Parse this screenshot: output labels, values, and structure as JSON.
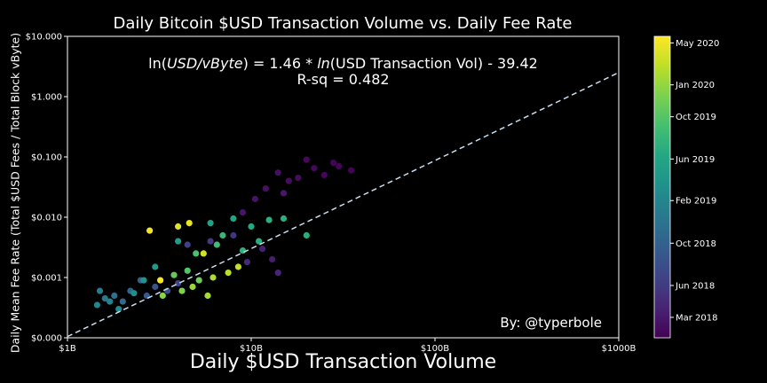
{
  "chart_data": {
    "type": "scatter",
    "title": "Daily Bitcoin $USD Transaction Volume vs. Daily Fee Rate",
    "xlabel": "Daily $USD Transaction Volume",
    "ylabel": "Daily Mean Fee Rate (Total $USD Fees / Total Block vByte)",
    "x_scale": "log",
    "y_scale": "log",
    "xlim": [
      1000000000,
      1000000000000
    ],
    "ylim": [
      0.0001,
      10
    ],
    "x_ticks": [
      {
        "value": 1000000000,
        "label": "$1B"
      },
      {
        "value": 10000000000,
        "label": "$10B"
      },
      {
        "value": 100000000000,
        "label": "$100B"
      },
      {
        "value": 1000000000000,
        "label": "$1000B"
      }
    ],
    "y_ticks": [
      {
        "value": 0.0001,
        "label": "$0.000"
      },
      {
        "value": 0.001,
        "label": "$0.001"
      },
      {
        "value": 0.01,
        "label": "$0.010"
      },
      {
        "value": 0.1,
        "label": "$0.100"
      },
      {
        "value": 1,
        "label": "$1.000"
      },
      {
        "value": 10,
        "label": "$10.000"
      }
    ],
    "annotation": {
      "equation_prefix": "ln(",
      "equation_italic": "USD/vByte",
      "equation_middle": ") = 1.46 * ",
      "equation_italic2": "ln",
      "equation_suffix": "(USD Transaction Vol) - 39.42",
      "rsq": "R-sq = 0.482",
      "credit": "By: @typerbole"
    },
    "fit_line": {
      "slope": 1.46,
      "intercept": -39.42,
      "style": "dashed",
      "color": "#c8dff0"
    },
    "colorbar": {
      "colormap": "viridis",
      "range": [
        "2018-01-01",
        "2020-05-20"
      ],
      "ticks": [
        {
          "date": "2018-03-01",
          "label": "Mar 2018"
        },
        {
          "date": "2018-06-01",
          "label": "Jun 2018"
        },
        {
          "date": "2018-10-01",
          "label": "Oct 2018"
        },
        {
          "date": "2019-02-01",
          "label": "Feb 2019"
        },
        {
          "date": "2019-06-01",
          "label": "Jun 2019"
        },
        {
          "date": "2019-10-01",
          "label": "Oct 2019"
        },
        {
          "date": "2020-01-01",
          "label": "Jan 2020"
        },
        {
          "date": "2020-05-01",
          "label": "May 2020"
        }
      ]
    },
    "series": [
      {
        "date_range": [
          "2018-01-01",
          "2020-05-20"
        ],
        "points": [
          {
            "x": 35000000000,
            "y": 0.06,
            "date": "2018-01-05"
          },
          {
            "x": 30000000000,
            "y": 0.07,
            "date": "2018-01-08"
          },
          {
            "x": 28000000000,
            "y": 0.08,
            "date": "2018-01-10"
          },
          {
            "x": 25000000000,
            "y": 0.05,
            "date": "2018-01-15"
          },
          {
            "x": 20000000000,
            "y": 0.09,
            "date": "2018-01-18"
          },
          {
            "x": 22000000000,
            "y": 0.065,
            "date": "2018-01-20"
          },
          {
            "x": 18000000000,
            "y": 0.045,
            "date": "2018-01-25"
          },
          {
            "x": 16000000000,
            "y": 0.04,
            "date": "2018-02-01"
          },
          {
            "x": 14000000000,
            "y": 0.055,
            "date": "2018-02-05"
          },
          {
            "x": 12000000000,
            "y": 0.03,
            "date": "2018-02-10"
          },
          {
            "x": 10500000000,
            "y": 0.02,
            "date": "2018-02-15"
          },
          {
            "x": 9000000000,
            "y": 0.012,
            "date": "2018-02-20"
          },
          {
            "x": 15000000000,
            "y": 0.025,
            "date": "2018-02-25"
          },
          {
            "x": 13000000000,
            "y": 0.002,
            "date": "2018-03-10"
          },
          {
            "x": 11500000000,
            "y": 0.003,
            "date": "2018-03-20"
          },
          {
            "x": 14000000000,
            "y": 0.0012,
            "date": "2018-04-01"
          },
          {
            "x": 9500000000,
            "y": 0.0018,
            "date": "2018-04-15"
          },
          {
            "x": 8000000000,
            "y": 0.005,
            "date": "2018-05-10"
          },
          {
            "x": 6000000000,
            "y": 0.004,
            "date": "2018-05-25"
          },
          {
            "x": 4500000000,
            "y": 0.0035,
            "date": "2018-06-15"
          },
          {
            "x": 4000000000,
            "y": 0.0008,
            "date": "2018-07-01"
          },
          {
            "x": 3500000000,
            "y": 0.0006,
            "date": "2018-07-20"
          },
          {
            "x": 3000000000,
            "y": 0.0007,
            "date": "2018-08-10"
          },
          {
            "x": 2700000000,
            "y": 0.0005,
            "date": "2018-09-01"
          },
          {
            "x": 2500000000,
            "y": 0.0009,
            "date": "2018-09-20"
          },
          {
            "x": 2200000000,
            "y": 0.0006,
            "date": "2018-10-10"
          },
          {
            "x": 2000000000,
            "y": 0.0004,
            "date": "2018-11-01"
          },
          {
            "x": 1800000000,
            "y": 0.0005,
            "date": "2018-11-20"
          },
          {
            "x": 1600000000,
            "y": 0.00045,
            "date": "2018-12-10"
          },
          {
            "x": 1500000000,
            "y": 0.0006,
            "date": "2019-01-01"
          },
          {
            "x": 1700000000,
            "y": 0.0004,
            "date": "2019-01-20"
          },
          {
            "x": 1450000000,
            "y": 0.00035,
            "date": "2019-02-01"
          },
          {
            "x": 1900000000,
            "y": 0.0003,
            "date": "2019-02-20"
          },
          {
            "x": 2300000000,
            "y": 0.00055,
            "date": "2019-03-10"
          },
          {
            "x": 2600000000,
            "y": 0.0009,
            "date": "2019-03-25"
          },
          {
            "x": 3000000000,
            "y": 0.0015,
            "date": "2019-04-10"
          },
          {
            "x": 4000000000,
            "y": 0.004,
            "date": "2019-05-01"
          },
          {
            "x": 6000000000,
            "y": 0.008,
            "date": "2019-05-15"
          },
          {
            "x": 8000000000,
            "y": 0.0095,
            "date": "2019-06-01"
          },
          {
            "x": 10000000000,
            "y": 0.007,
            "date": "2019-06-15"
          },
          {
            "x": 11000000000,
            "y": 0.004,
            "date": "2019-06-25"
          },
          {
            "x": 9000000000,
            "y": 0.0028,
            "date": "2019-07-10"
          },
          {
            "x": 20000000000,
            "y": 0.005,
            "date": "2019-07-01"
          },
          {
            "x": 15000000000,
            "y": 0.0095,
            "date": "2019-07-05"
          },
          {
            "x": 12500000000,
            "y": 0.009,
            "date": "2019-07-08"
          },
          {
            "x": 7000000000,
            "y": 0.005,
            "date": "2019-08-01"
          },
          {
            "x": 6500000000,
            "y": 0.0035,
            "date": "2019-08-20"
          },
          {
            "x": 5000000000,
            "y": 0.0025,
            "date": "2019-09-10"
          },
          {
            "x": 4500000000,
            "y": 0.0013,
            "date": "2019-10-01"
          },
          {
            "x": 3800000000,
            "y": 0.0011,
            "date": "2019-10-25"
          },
          {
            "x": 5200000000,
            "y": 0.0009,
            "date": "2019-11-10"
          },
          {
            "x": 4200000000,
            "y": 0.0006,
            "date": "2019-12-01"
          },
          {
            "x": 3300000000,
            "y": 0.0005,
            "date": "2019-12-20"
          },
          {
            "x": 4800000000,
            "y": 0.0007,
            "date": "2020-01-10"
          },
          {
            "x": 6200000000,
            "y": 0.001,
            "date": "2020-02-01"
          },
          {
            "x": 7500000000,
            "y": 0.0012,
            "date": "2020-02-20"
          },
          {
            "x": 8500000000,
            "y": 0.0015,
            "date": "2020-03-05"
          },
          {
            "x": 5500000000,
            "y": 0.0025,
            "date": "2020-03-20"
          },
          {
            "x": 4000000000,
            "y": 0.007,
            "date": "2020-04-10"
          },
          {
            "x": 4600000000,
            "y": 0.008,
            "date": "2020-04-25"
          },
          {
            "x": 2800000000,
            "y": 0.006,
            "date": "2020-05-05"
          },
          {
            "x": 3200000000,
            "y": 0.0009,
            "date": "2020-05-15"
          },
          {
            "x": 5800000000,
            "y": 0.0005,
            "date": "2020-01-25"
          }
        ]
      }
    ]
  }
}
